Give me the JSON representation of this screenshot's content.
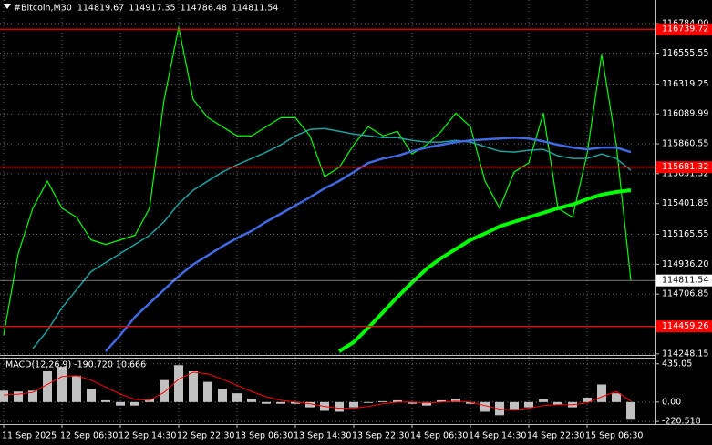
{
  "chart_data": [
    {
      "type": "line",
      "title": "#Bitcoin,M30",
      "ohlc": [
        114819.67,
        114917.35,
        114786.48,
        114811.54
      ],
      "categories": [
        "11 Sep 2025",
        null,
        null,
        null,
        "12 Sep 06:30",
        null,
        null,
        null,
        "12 Sep 14:30",
        null,
        null,
        null,
        "12 Sep 22:30",
        null,
        null,
        null,
        "13 Sep 06:30",
        null,
        null,
        null,
        "13 Sep 14:30",
        null,
        null,
        null,
        "13 Sep 22:30",
        null,
        null,
        null,
        "14 Sep 06:30",
        null,
        null,
        null,
        "14 Sep 14:30",
        null,
        null,
        null,
        "14 Sep 22:30",
        null,
        null,
        null,
        "15 Sep 06:30",
        null,
        null,
        null
      ],
      "series": [
        {
          "color": "#00ff00",
          "width": 1.2,
          "values": [
            114393,
            115019,
            115366,
            115575,
            115366,
            115297,
            115123,
            115088,
            115123,
            115158,
            115366,
            116200,
            116756,
            116200,
            116061,
            115992,
            115922,
            115922,
            115992,
            116061,
            116061,
            115922,
            115609,
            115679,
            115853,
            115992,
            115922,
            115957,
            115783,
            115853,
            115957,
            116096,
            115992,
            115575,
            115366,
            115644,
            115714,
            116096,
            115366,
            115297,
            115783,
            116548,
            115853,
            114811.54
          ]
        },
        {
          "color": "#21a0a0",
          "width": 1.5,
          "values": [
            null,
            null,
            114289,
            114428,
            114602,
            114741,
            114880,
            114949,
            115019,
            115088,
            115158,
            115262,
            115401,
            115505,
            115575,
            115644,
            115700,
            115748,
            115797,
            115853,
            115922,
            115971,
            115978,
            115957,
            115936,
            115922,
            115908,
            115908,
            115887,
            115874,
            115874,
            115887,
            115874,
            115839,
            115804,
            115797,
            115811,
            115818,
            115769,
            115748,
            115748,
            115783,
            115748,
            115658
          ]
        },
        {
          "color": "#4169e1",
          "width": 2.5,
          "values": [
            null,
            null,
            null,
            null,
            null,
            null,
            null,
            114268,
            114393,
            114532,
            114636,
            114741,
            114845,
            114935,
            115005,
            115074,
            115137,
            115192,
            115262,
            115324,
            115387,
            115450,
            115519,
            115575,
            115644,
            115714,
            115748,
            115769,
            115804,
            115832,
            115853,
            115874,
            115887,
            115894,
            115901,
            115908,
            115901,
            115880,
            115853,
            115832,
            115818,
            115832,
            115832,
            115797
          ]
        },
        {
          "color": "#00ff00",
          "width": 4,
          "values": [
            null,
            null,
            null,
            null,
            null,
            null,
            null,
            null,
            null,
            null,
            null,
            null,
            null,
            null,
            null,
            null,
            null,
            null,
            null,
            null,
            null,
            null,
            null,
            114268,
            114338,
            114449,
            114567,
            114685,
            114796,
            114901,
            114984,
            115053,
            115123,
            115172,
            115227,
            115262,
            115297,
            115331,
            115366,
            115394,
            115436,
            115470,
            115491,
            115505
          ]
        }
      ],
      "levels": [
        116739.72,
        115681.32,
        114459.26
      ],
      "level_color": "#ff0000",
      "ylim": [
        114240,
        116965
      ],
      "yticks": [
        {
          "value": 116784,
          "label": "116784.00"
        },
        116555.55,
        116319.25,
        116089.99,
        115860.55,
        115631.32,
        115401.85,
        115165.55,
        {
          "value": 114936.2,
          "label": "114936.20"
        },
        114706.85,
        114248.15
      ],
      "grid": true
    },
    {
      "type": "bar",
      "title": "MACD(12,26,9) -190.720 10.666",
      "color": "#c0c0c0",
      "values": [
        130,
        120,
        130,
        350,
        400,
        300,
        150,
        20,
        -40,
        -40,
        30,
        250,
        420,
        350,
        230,
        150,
        100,
        40,
        -20,
        -20,
        -20,
        -60,
        -100,
        -110,
        -60,
        -10,
        10,
        20,
        -20,
        -40,
        20,
        40,
        -20,
        -110,
        -150,
        -80,
        -60,
        30,
        -30,
        -60,
        50,
        200,
        100,
        -190.72
      ],
      "signal": {
        "color": "#ff0000",
        "values": [
          80,
          90,
          110,
          200,
          290,
          300,
          250,
          170,
          90,
          30,
          20,
          110,
          260,
          340,
          320,
          260,
          190,
          120,
          60,
          20,
          0,
          -20,
          -50,
          -70,
          -70,
          -50,
          -20,
          0,
          0,
          -10,
          0,
          10,
          0,
          -40,
          -80,
          -90,
          -70,
          -40,
          -30,
          -30,
          -10,
          60,
          120,
          10.666
        ]
      },
      "ylim": [
        -250,
        505
      ],
      "yticks": [
        435.05,
        {
          "value": 0,
          "label": "0.00"
        },
        -220.518
      ],
      "grid": true
    }
  ]
}
